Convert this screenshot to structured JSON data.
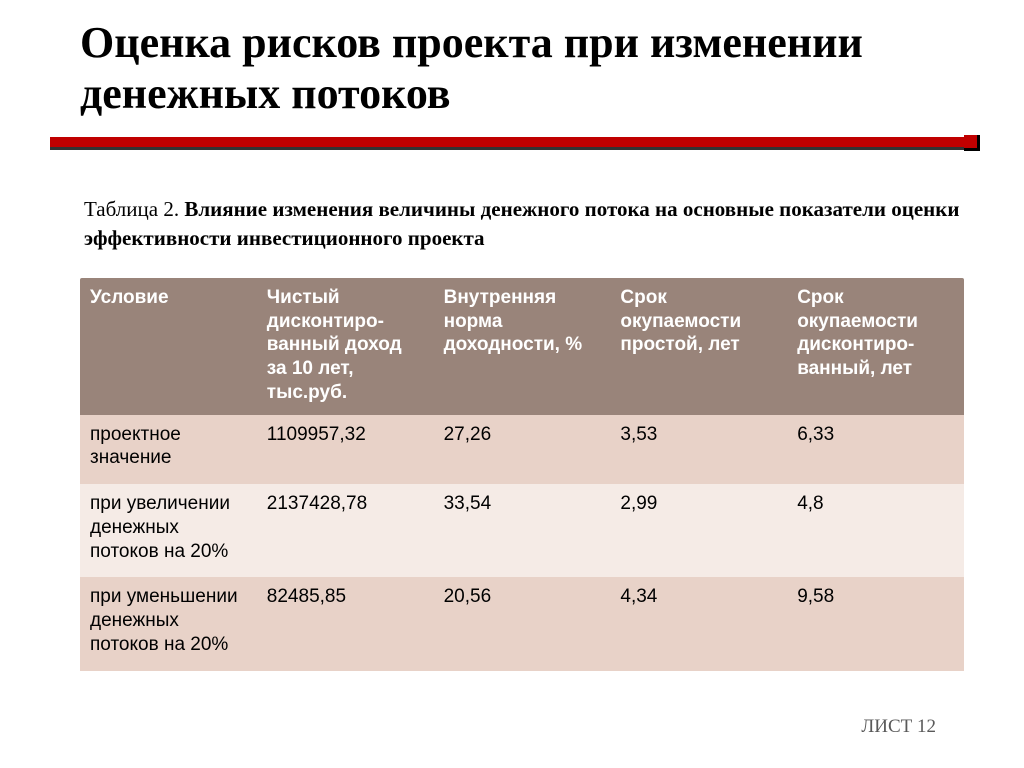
{
  "title": "Оценка рисков проекта при изменении денежных потоков",
  "caption_label": "Таблица 2. ",
  "caption_bold": "Влияние изменения величины денежного потока на основные показатели оценки эффективности инвестиционного проекта",
  "colors": {
    "accent_red": "#c00000",
    "table_header_bg": "#99847a",
    "table_header_fg": "#ffffff",
    "row_a_bg": "#e8d2c8",
    "row_b_bg": "#f5ebe6",
    "footer_fg": "#595959"
  },
  "table": {
    "columns": [
      "Условие",
      "Чистый дисконтиро-ванный доход за 10 лет, тыс.руб.",
      "Внутренняя норма доходности, %",
      "Срок окупаемости простой, лет",
      "Срок окупаемости дисконтиро-ванный, лет"
    ],
    "rows": [
      {
        "cells": [
          "проектное значение",
          "1109957,32",
          "27,26",
          "3,53",
          "6,33"
        ],
        "shade": "a"
      },
      {
        "cells": [
          "при увеличении денежных потоков на 20%",
          "2137428,78",
          "33,54",
          "2,99",
          "4,8"
        ],
        "shade": "b"
      },
      {
        "cells": [
          "при уменьшении денежных потоков на 20%",
          "82485,85",
          "20,56",
          "4,34",
          "9,58"
        ],
        "shade": "a"
      }
    ]
  },
  "footer": "ЛИСТ 12"
}
